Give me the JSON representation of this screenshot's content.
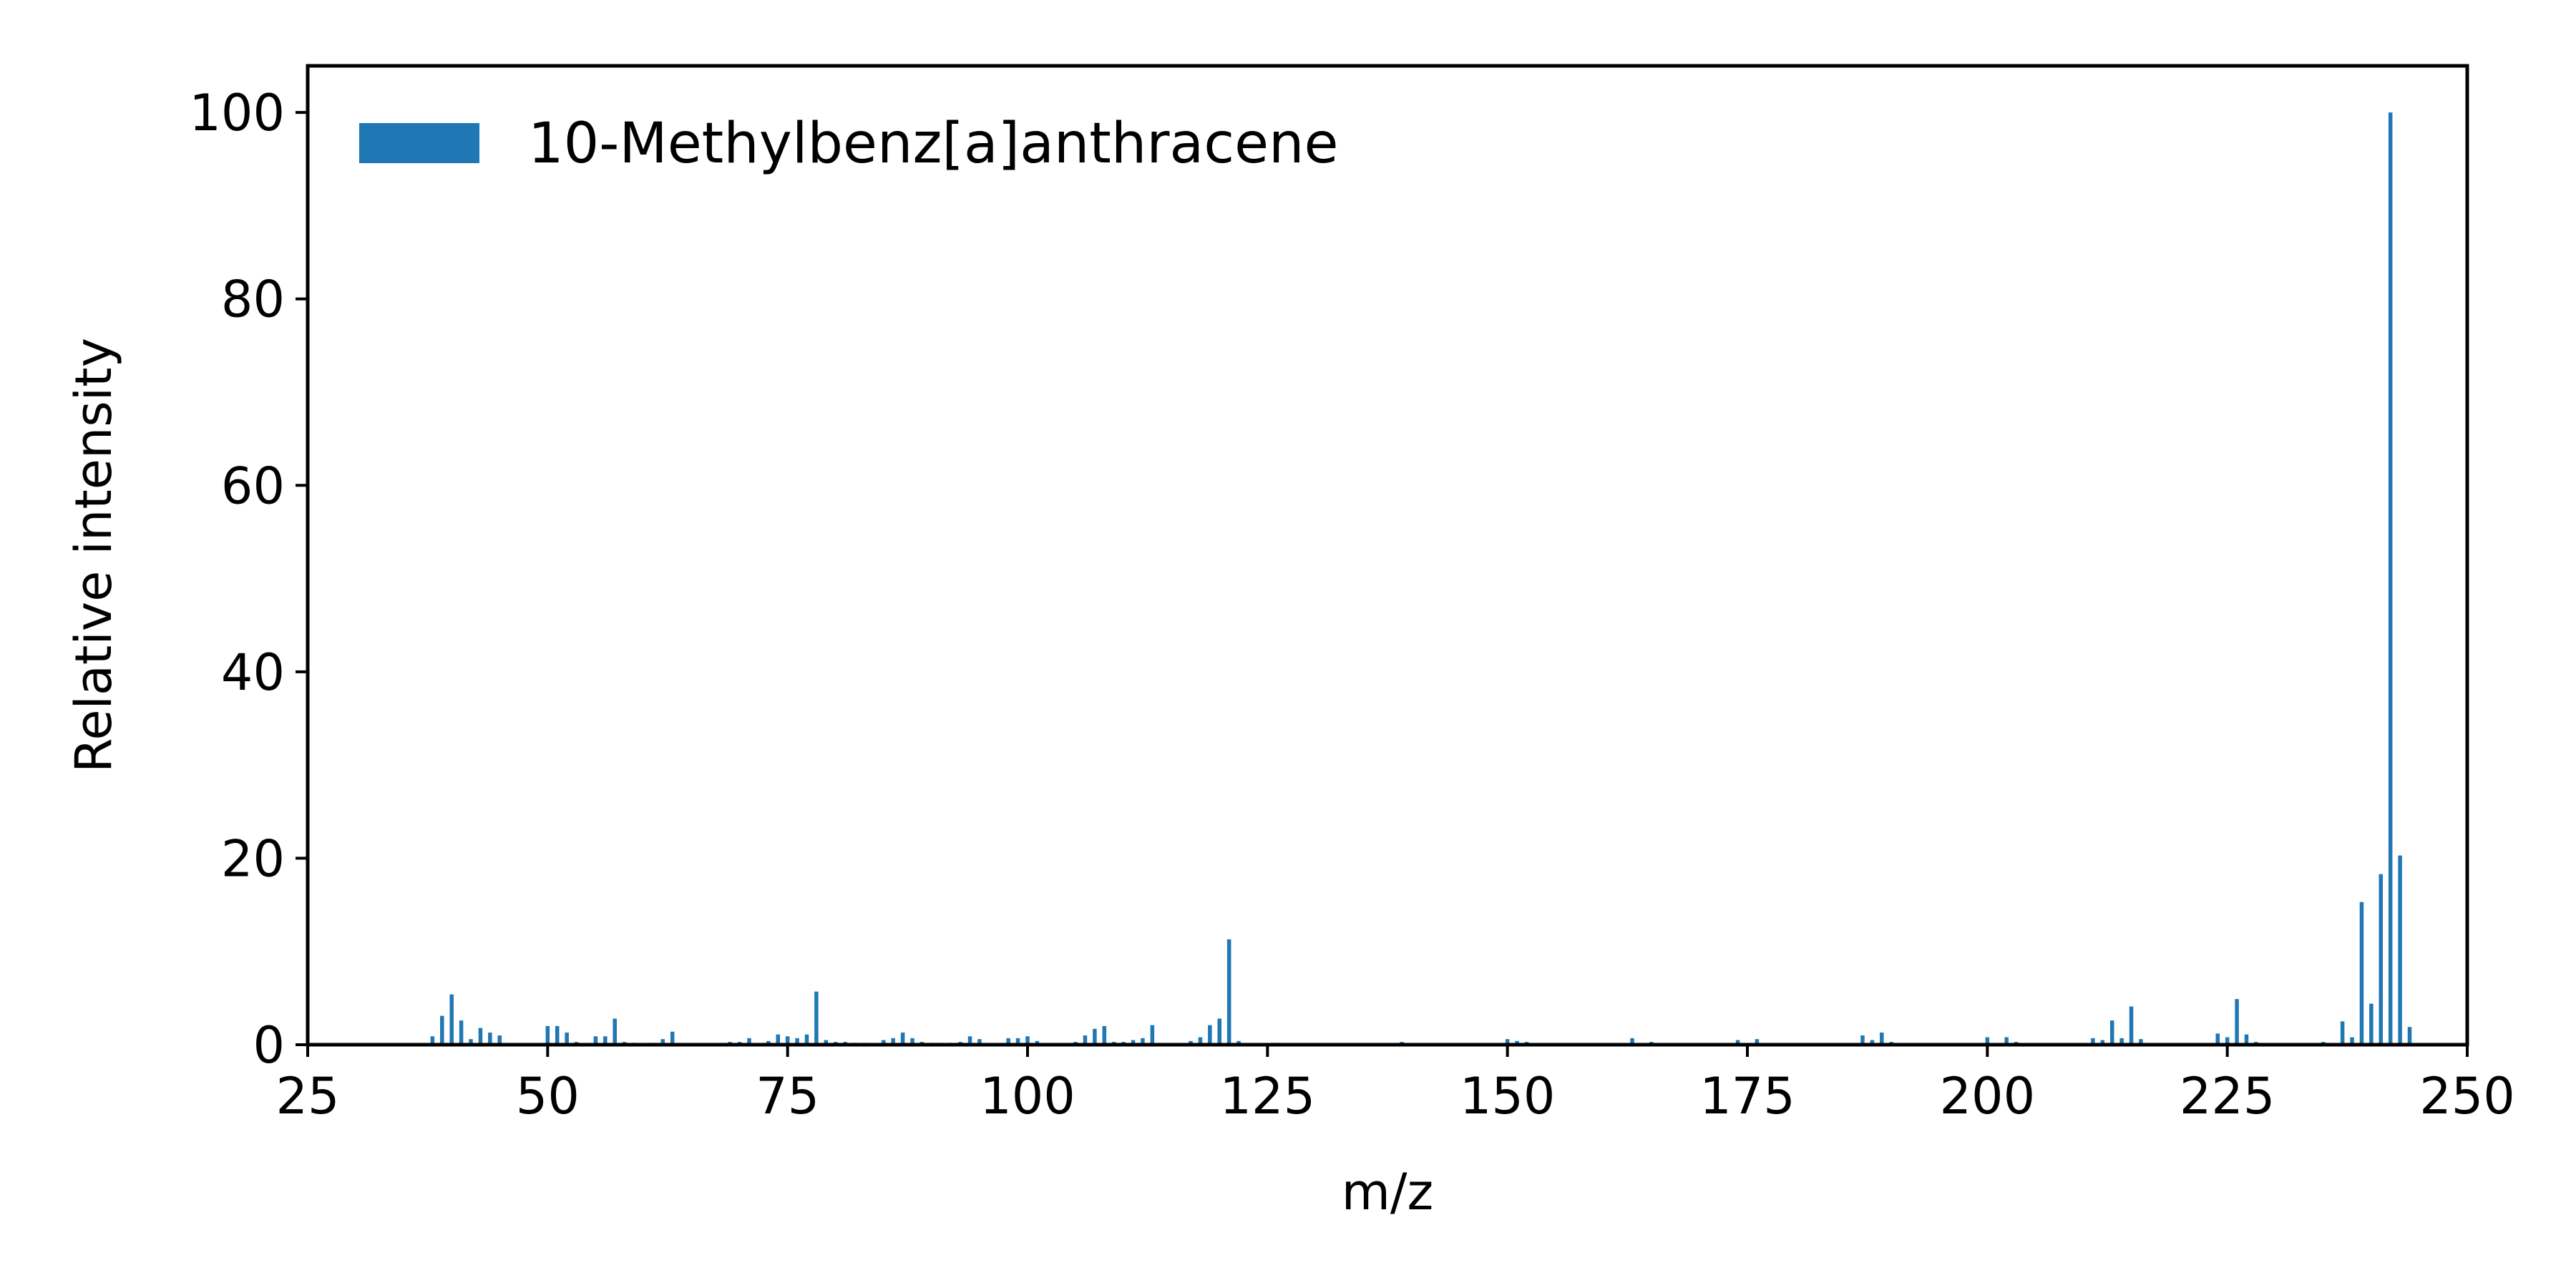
{
  "chart_data": {
    "type": "bar",
    "xlabel": "m/z",
    "ylabel": "Relative intensity",
    "xlim": [
      25,
      250
    ],
    "ylim": [
      0,
      105
    ],
    "xticks": [
      25,
      50,
      75,
      100,
      125,
      150,
      175,
      200,
      225,
      250
    ],
    "yticks": [
      0,
      20,
      40,
      60,
      80,
      100
    ],
    "grid": false,
    "legend_position": "top-left",
    "series": [
      {
        "name": "10-Methylbenz[a]anthracene",
        "color": "#1f77b4",
        "points": [
          [
            38,
            0.9
          ],
          [
            39,
            3.1
          ],
          [
            40,
            5.4
          ],
          [
            41,
            2.6
          ],
          [
            42,
            0.6
          ],
          [
            43,
            1.8
          ],
          [
            44,
            1.3
          ],
          [
            45,
            1.0
          ],
          [
            50,
            2.0
          ],
          [
            51,
            2.0
          ],
          [
            52,
            1.3
          ],
          [
            53,
            0.3
          ],
          [
            55,
            0.9
          ],
          [
            56,
            0.9
          ],
          [
            57,
            2.8
          ],
          [
            58,
            0.3
          ],
          [
            59,
            0.2
          ],
          [
            61,
            0.2
          ],
          [
            62,
            0.6
          ],
          [
            63,
            1.4
          ],
          [
            69,
            0.3
          ],
          [
            70,
            0.3
          ],
          [
            71,
            0.7
          ],
          [
            73,
            0.4
          ],
          [
            74,
            1.1
          ],
          [
            75,
            0.9
          ],
          [
            76,
            0.7
          ],
          [
            77,
            1.1
          ],
          [
            78,
            5.7
          ],
          [
            79,
            0.5
          ],
          [
            80,
            0.3
          ],
          [
            81,
            0.3
          ],
          [
            82,
            0.2
          ],
          [
            83,
            0.2
          ],
          [
            85,
            0.5
          ],
          [
            86,
            0.7
          ],
          [
            87,
            1.3
          ],
          [
            88,
            0.7
          ],
          [
            89,
            0.3
          ],
          [
            90,
            0.2
          ],
          [
            91,
            0.2
          ],
          [
            92,
            0.2
          ],
          [
            93,
            0.3
          ],
          [
            94,
            0.9
          ],
          [
            95,
            0.6
          ],
          [
            98,
            0.7
          ],
          [
            99,
            0.7
          ],
          [
            100,
            0.9
          ],
          [
            101,
            0.4
          ],
          [
            105,
            0.3
          ],
          [
            106,
            1.0
          ],
          [
            107,
            1.7
          ],
          [
            108,
            2.0
          ],
          [
            109,
            0.3
          ],
          [
            110,
            0.3
          ],
          [
            111,
            0.5
          ],
          [
            112,
            0.7
          ],
          [
            113,
            2.1
          ],
          [
            117,
            0.4
          ],
          [
            118,
            0.8
          ],
          [
            119,
            2.1
          ],
          [
            120,
            2.8
          ],
          [
            121,
            11.3
          ],
          [
            122,
            0.4
          ],
          [
            126,
            0.2
          ],
          [
            139,
            0.3
          ],
          [
            150,
            0.6
          ],
          [
            151,
            0.4
          ],
          [
            152,
            0.3
          ],
          [
            163,
            0.7
          ],
          [
            165,
            0.3
          ],
          [
            174,
            0.5
          ],
          [
            176,
            0.6
          ],
          [
            187,
            1.0
          ],
          [
            188,
            0.5
          ],
          [
            189,
            1.3
          ],
          [
            190,
            0.3
          ],
          [
            200,
            0.8
          ],
          [
            202,
            0.8
          ],
          [
            203,
            0.3
          ],
          [
            211,
            0.7
          ],
          [
            212,
            0.5
          ],
          [
            213,
            2.6
          ],
          [
            214,
            0.7
          ],
          [
            215,
            4.1
          ],
          [
            216,
            0.6
          ],
          [
            224,
            1.2
          ],
          [
            225,
            0.8
          ],
          [
            226,
            4.9
          ],
          [
            227,
            1.1
          ],
          [
            228,
            0.3
          ],
          [
            235,
            0.3
          ],
          [
            237,
            2.5
          ],
          [
            238,
            0.8
          ],
          [
            239,
            15.3
          ],
          [
            240,
            4.4
          ],
          [
            241,
            18.3
          ],
          [
            242,
            100.0
          ],
          [
            243,
            20.3
          ],
          [
            244,
            1.9
          ]
        ]
      }
    ]
  }
}
